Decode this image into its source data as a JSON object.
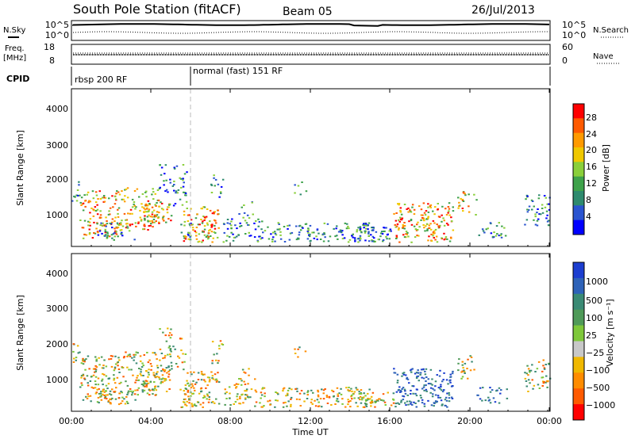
{
  "header": {
    "title": "South Pole Station (fitACF)",
    "beam": "Beam 05",
    "date": "26/Jul/2013"
  },
  "chart_data": [
    {
      "type": "line",
      "panel": "noise",
      "ylabel_left": "N.Sky",
      "ylabel_right": "N.Search",
      "left_ticks": [
        "10^5",
        "10^0"
      ],
      "right_ticks": [
        "10^5",
        "10^0"
      ]
    },
    {
      "type": "line",
      "panel": "frequency",
      "ylabel_left": "Freq.",
      "ylabel_left_unit": "[MHz]",
      "ylabel_right": "Nave",
      "left_ticks": [
        "18",
        "8"
      ],
      "right_ticks": [
        "60",
        "0"
      ]
    },
    {
      "type": "table",
      "panel": "cpid",
      "label": "CPID",
      "modes": [
        {
          "name": "rbsp 200 RF",
          "start_hour": 0,
          "end_hour": 6
        },
        {
          "name": "normal (fast) 151 RF",
          "start_hour": 6,
          "end_hour": 24
        }
      ]
    },
    {
      "type": "heatmap",
      "panel": "power",
      "ylabel": "Slant Range [km]",
      "y_ticks": [
        "4000",
        "3000",
        "2000",
        "1000"
      ],
      "ylim": [
        180,
        4500
      ],
      "colorbar_label": "Power [dB]",
      "colorbar_ticks": [
        "28",
        "24",
        "20",
        "16",
        "12",
        "8",
        "4"
      ],
      "colorbar_colors": [
        "#ff0000",
        "#ff5a00",
        "#ff9a00",
        "#f0c800",
        "#8acf3a",
        "#3ea24a",
        "#2e8a6e",
        "#2a54d0",
        "#0000ff"
      ]
    },
    {
      "type": "heatmap",
      "panel": "velocity",
      "ylabel": "Slant Range [km]",
      "y_ticks": [
        "4000",
        "3000",
        "2000",
        "1000"
      ],
      "ylim": [
        180,
        4500
      ],
      "colorbar_label": "Velocity [m s⁻¹]",
      "colorbar_ticks": [
        "1000",
        "500",
        "100",
        "25",
        "−25",
        "−100",
        "−500",
        "−1000"
      ],
      "colorbar_colors": [
        "#1c3ed0",
        "#2e62b8",
        "#3a8a74",
        "#4f9a58",
        "#7ec83a",
        "#c8c8c8",
        "#f0b800",
        "#ff8c00",
        "#ff5a00",
        "#ff0000"
      ]
    }
  ],
  "x_axis": {
    "label": "Time UT",
    "ticks": [
      "00:00",
      "04:00",
      "08:00",
      "12:00",
      "16:00",
      "20:00",
      "00:00"
    ]
  }
}
